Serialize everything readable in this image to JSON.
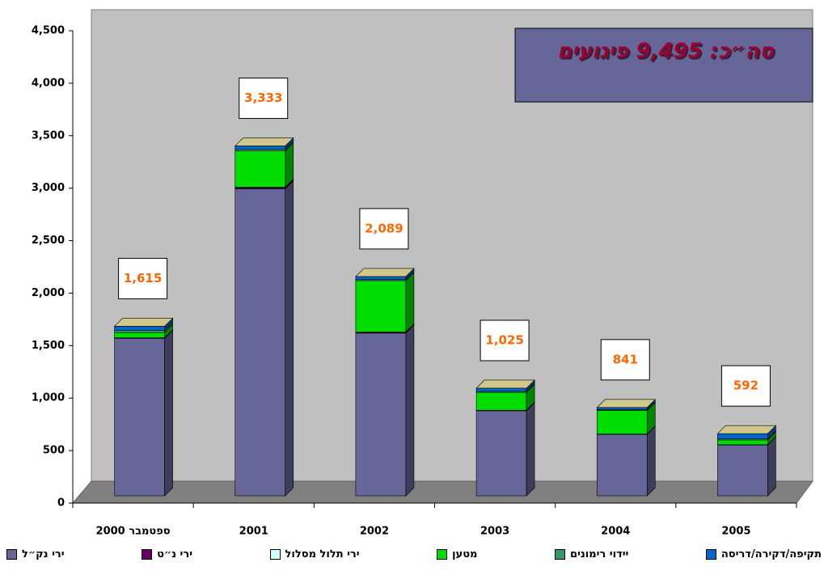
{
  "chart_data": {
    "type": "bar3d_stacked",
    "annotation": "סה״כ: 9,495 פיגועים",
    "categories": [
      "ספטמבר 2000",
      "2001",
      "2002",
      "2003",
      "2004",
      "2005"
    ],
    "series": [
      {
        "name": "ירי נק״ל",
        "color": "#666699",
        "values": [
          1500,
          2925,
          1550,
          810,
          585,
          485
        ]
      },
      {
        "name": "ירי נ״ט",
        "color": "#660066",
        "values": [
          5,
          10,
          5,
          3,
          2,
          1
        ]
      },
      {
        "name": "ירי תלול מסלול",
        "color": "#ccffff",
        "values": [
          0,
          5,
          5,
          2,
          1,
          1
        ]
      },
      {
        "name": "מטען",
        "color": "#00dd00",
        "values": [
          50,
          345,
          490,
          170,
          225,
          45
        ]
      },
      {
        "name": "יידוי רימונים",
        "color": "#339966",
        "values": [
          20,
          15,
          10,
          10,
          8,
          10
        ]
      },
      {
        "name": "תקיפה/דקירה/דריסה",
        "color": "#0066cc",
        "values": [
          40,
          33,
          29,
          30,
          20,
          50
        ]
      }
    ],
    "totals": [
      1615,
      3333,
      2089,
      1025,
      841,
      592
    ],
    "total_labels": [
      "1,615",
      "3,333",
      "2,089",
      "1,025",
      "841",
      "592"
    ],
    "ylim": [
      0,
      4500
    ],
    "yticks": [
      0,
      500,
      {
        "value": 1000,
        "label": "1,000"
      },
      {
        "value": 1500,
        "label": "1,500"
      },
      {
        "value": 2000,
        "label": "2,000"
      },
      {
        "value": 2500,
        "label": "2,500"
      },
      {
        "value": 3000,
        "label": "3,000"
      },
      {
        "value": 3500,
        "label": "3,500"
      },
      {
        "value": 4000,
        "label": "4,000"
      },
      {
        "value": 4500,
        "label": "4,500"
      }
    ],
    "grid": false
  }
}
